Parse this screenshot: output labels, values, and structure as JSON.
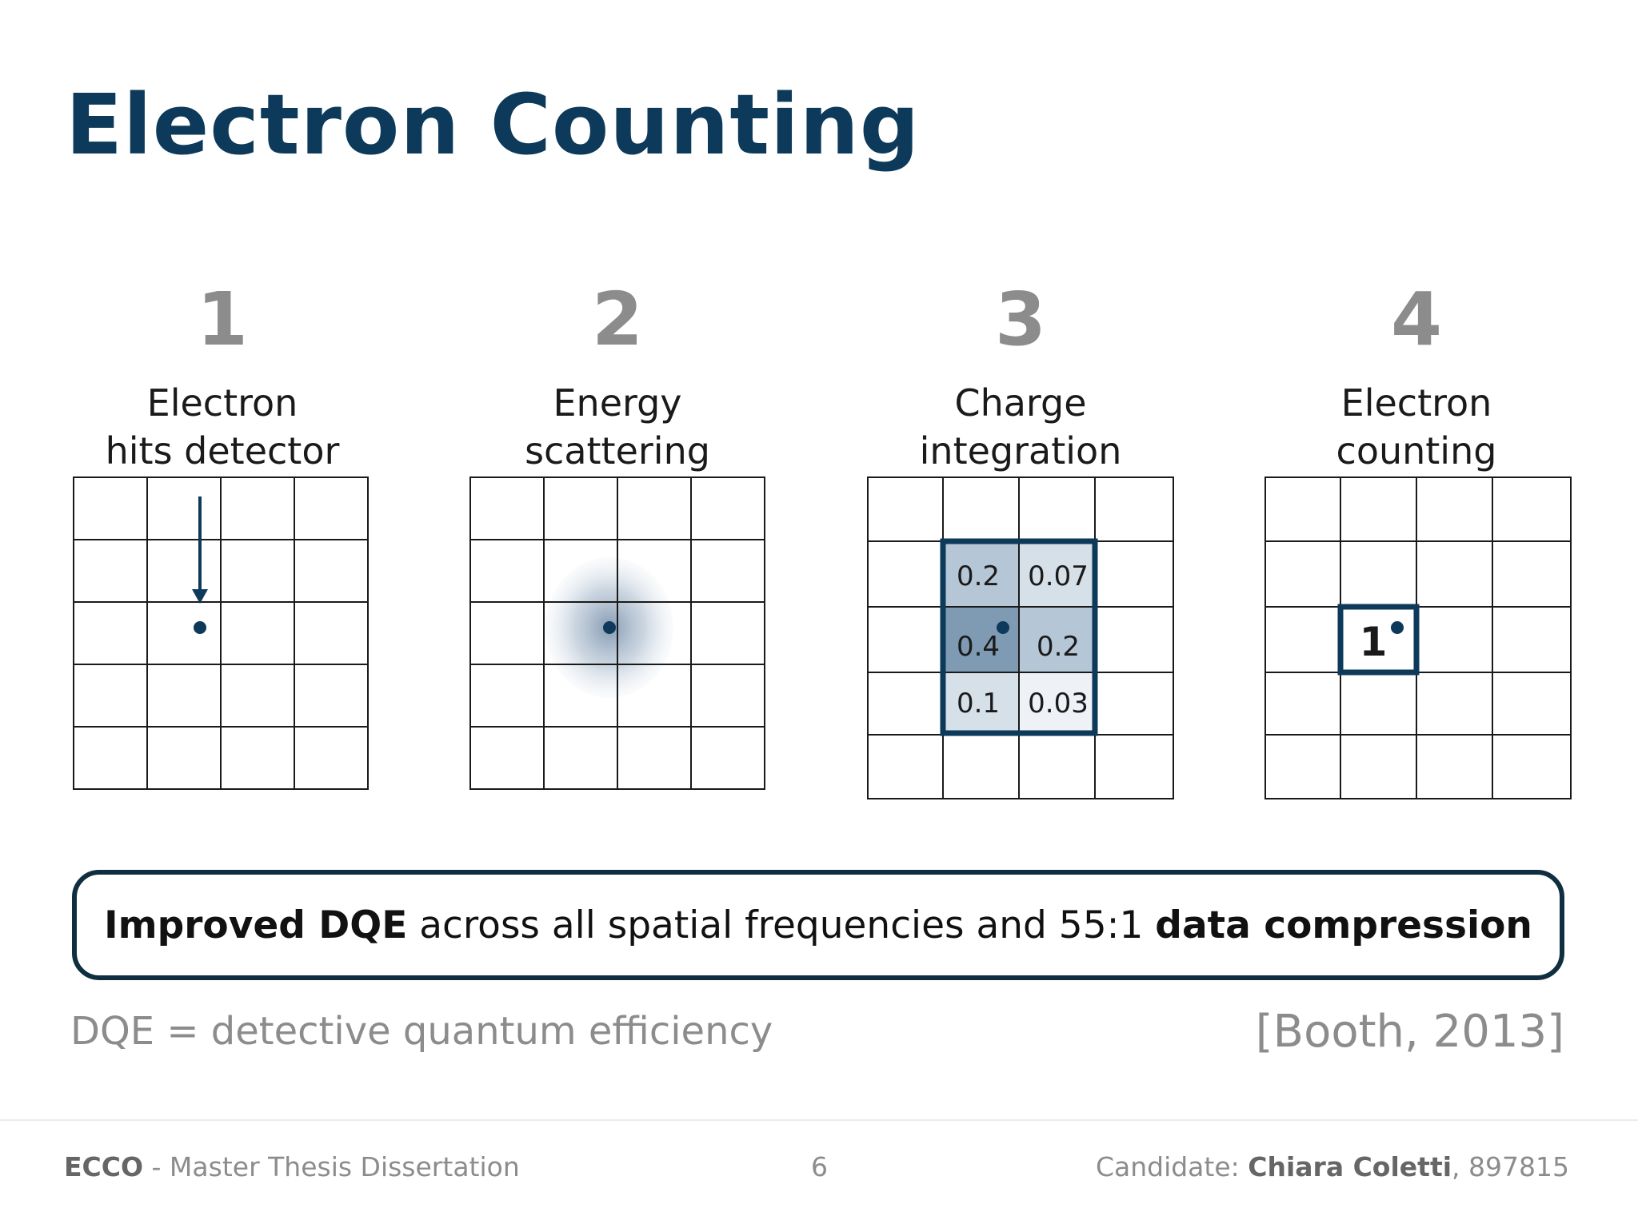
{
  "slide": {
    "title": "Electron Counting",
    "steps": [
      {
        "number": "1",
        "label_line1": "Electron",
        "label_line2": "hits detector"
      },
      {
        "number": "2",
        "label_line1": "Energy",
        "label_line2": "scattering"
      },
      {
        "number": "3",
        "label_line1": "Charge",
        "label_line2": "integration"
      },
      {
        "number": "4",
        "label_line1": "Electron",
        "label_line2": "counting"
      }
    ],
    "charge_values": [
      "0.2",
      "0.07",
      "0.4",
      "0.2",
      "0.1",
      "0.03"
    ],
    "count_value": "1",
    "callout": {
      "bold1": "Improved DQE",
      "text1": " across all spatial frequencies and 55:1 ",
      "bold2": "data compression"
    },
    "note": "DQE = detective quantum efficiency",
    "citation": "[Booth, 2013]"
  },
  "footer": {
    "left_bold": "ECCO",
    "left_text": " - Master Thesis Dissertation",
    "page_number": "6",
    "right_label": "Candidate: ",
    "right_name": "Chiara Coletti",
    "right_id": ", 897815"
  },
  "colors": {
    "title": "#0d3a5a",
    "grey": "#8c8c8c",
    "navy": "#0d3a5a",
    "cell_dark": "#7f9bb4",
    "cell_mid": "#b5c7d6",
    "cell_light": "#d6e0e9",
    "cell_lighter": "#eef2f6"
  }
}
